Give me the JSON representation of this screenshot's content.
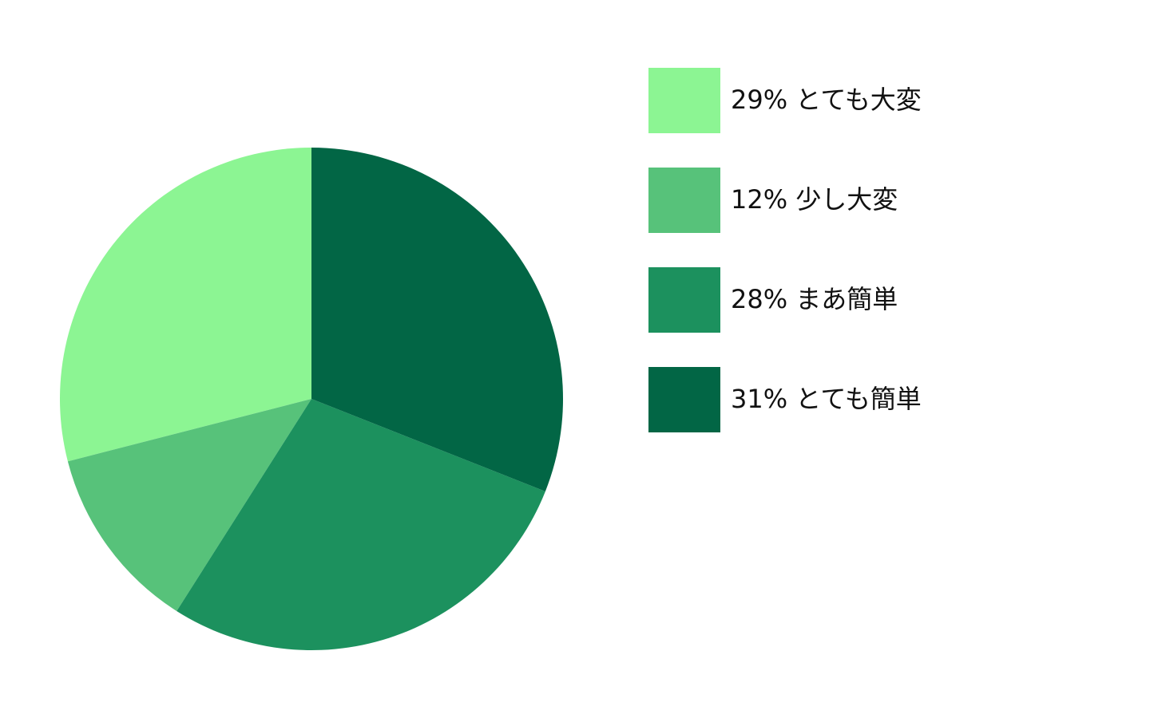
{
  "chart_data": {
    "type": "pie",
    "categories": [
      "29% とても大変",
      "12% 少し大変",
      "28% まあ簡単",
      "31% とても簡単"
    ],
    "values": [
      29,
      12,
      28,
      31
    ],
    "colors": [
      "#8cf593",
      "#57c27a",
      "#1c915e",
      "#026645"
    ],
    "start": "top",
    "direction": "counterclockwise",
    "legend": "right"
  }
}
